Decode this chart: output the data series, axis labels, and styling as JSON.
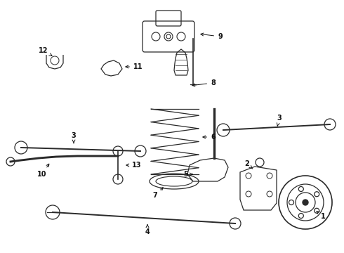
{
  "bg_color": "#ffffff",
  "line_color": "#2a2a2a",
  "lw": 0.9,
  "figsize": [
    4.9,
    3.6
  ],
  "dpi": 100,
  "xlim": [
    0,
    490
  ],
  "ylim": [
    0,
    360
  ]
}
